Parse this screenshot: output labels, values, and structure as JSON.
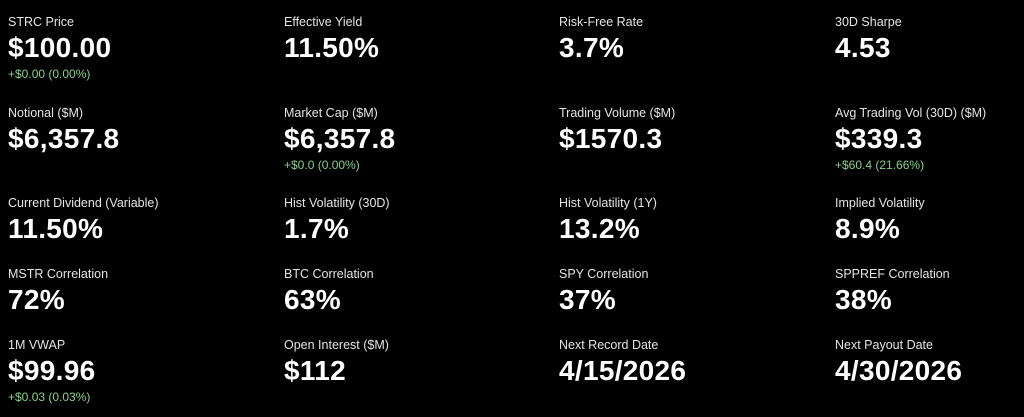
{
  "rows": [
    [
      {
        "label": "STRC Price",
        "value": "$100.00",
        "change": "+$0.00 (0.00%)"
      },
      {
        "label": "Effective Yield",
        "value": "11.50%"
      },
      {
        "label": "Risk-Free Rate",
        "value": "3.7%"
      },
      {
        "label": "30D Sharpe",
        "value": "4.53"
      }
    ],
    [
      {
        "label": "Notional ($M)",
        "value": "$6,357.8"
      },
      {
        "label": "Market Cap ($M)",
        "value": "$6,357.8",
        "change": "+$0.0 (0.00%)"
      },
      {
        "label": "Trading Volume ($M)",
        "value": "$1570.3"
      },
      {
        "label": "Avg Trading Vol (30D) ($M)",
        "value": "$339.3",
        "change": "+$60.4 (21.66%)"
      }
    ],
    [
      {
        "label": "Current Dividend (Variable)",
        "value": "11.50%"
      },
      {
        "label": "Hist Volatility (30D)",
        "value": "1.7%"
      },
      {
        "label": "Hist Volatility (1Y)",
        "value": "13.2%"
      },
      {
        "label": "Implied Volatility",
        "value": "8.9%"
      }
    ],
    [
      {
        "label": "MSTR Correlation",
        "value": "72%"
      },
      {
        "label": "BTC Correlation",
        "value": "63%"
      },
      {
        "label": "SPY Correlation",
        "value": "37%"
      },
      {
        "label": "SPPREF Correlation",
        "value": "38%"
      }
    ],
    [
      {
        "label": "1M VWAP",
        "value": "$99.96",
        "change": "+$0.03 (0.03%)"
      },
      {
        "label": "Open Interest ($M)",
        "value": "$112"
      },
      {
        "label": "Next Record Date",
        "value": "4/15/2026"
      },
      {
        "label": "Next Payout Date",
        "value": "4/30/2026"
      }
    ]
  ]
}
